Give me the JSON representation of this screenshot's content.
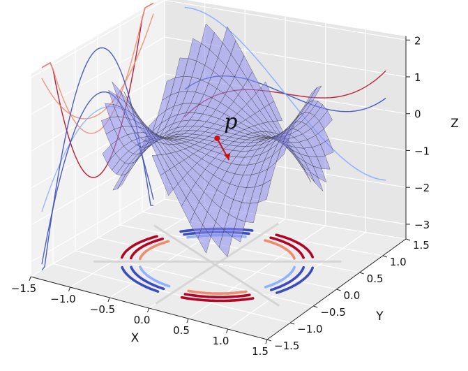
{
  "chart_data": {
    "type": "surface3d",
    "surface": {
      "function": "z = x^3 - 3*x*y^2",
      "domain_x": [
        -1.25,
        1.25
      ],
      "domain_y": [
        -1.25,
        1.25
      ],
      "color": "#8c8cf0",
      "wire_color": "#333333"
    },
    "point": {
      "label": "p",
      "x": 0.0,
      "y": 0.0,
      "z": 0.0,
      "color": "#cc1111"
    },
    "axes": {
      "xlabel": "X",
      "ylabel": "Y",
      "zlabel": "Z",
      "xlim": [
        -1.5,
        1.5
      ],
      "ylim": [
        -1.5,
        1.5
      ],
      "zlim": [
        -3.4,
        2.1
      ],
      "xticks": [
        "−1.5",
        "−1.0",
        "−0.5",
        "0.0",
        "0.5",
        "1.0",
        "1.5"
      ],
      "yticks": [
        "−1.5",
        "−1.0",
        "−0.5",
        "0.0",
        "0.5",
        "1.0",
        "1.5"
      ],
      "zticks": [
        "−3",
        "−2",
        "−1",
        "0",
        "1",
        "2"
      ],
      "grid": true
    },
    "projections": [
      "floor contour arcs (z-level)",
      "back wall curve families (x-sections, y-sections)"
    ],
    "colormap": [
      "#b40426",
      "#f08c6e",
      "#dddddd",
      "#8fb1fe",
      "#3b4cc0"
    ]
  }
}
